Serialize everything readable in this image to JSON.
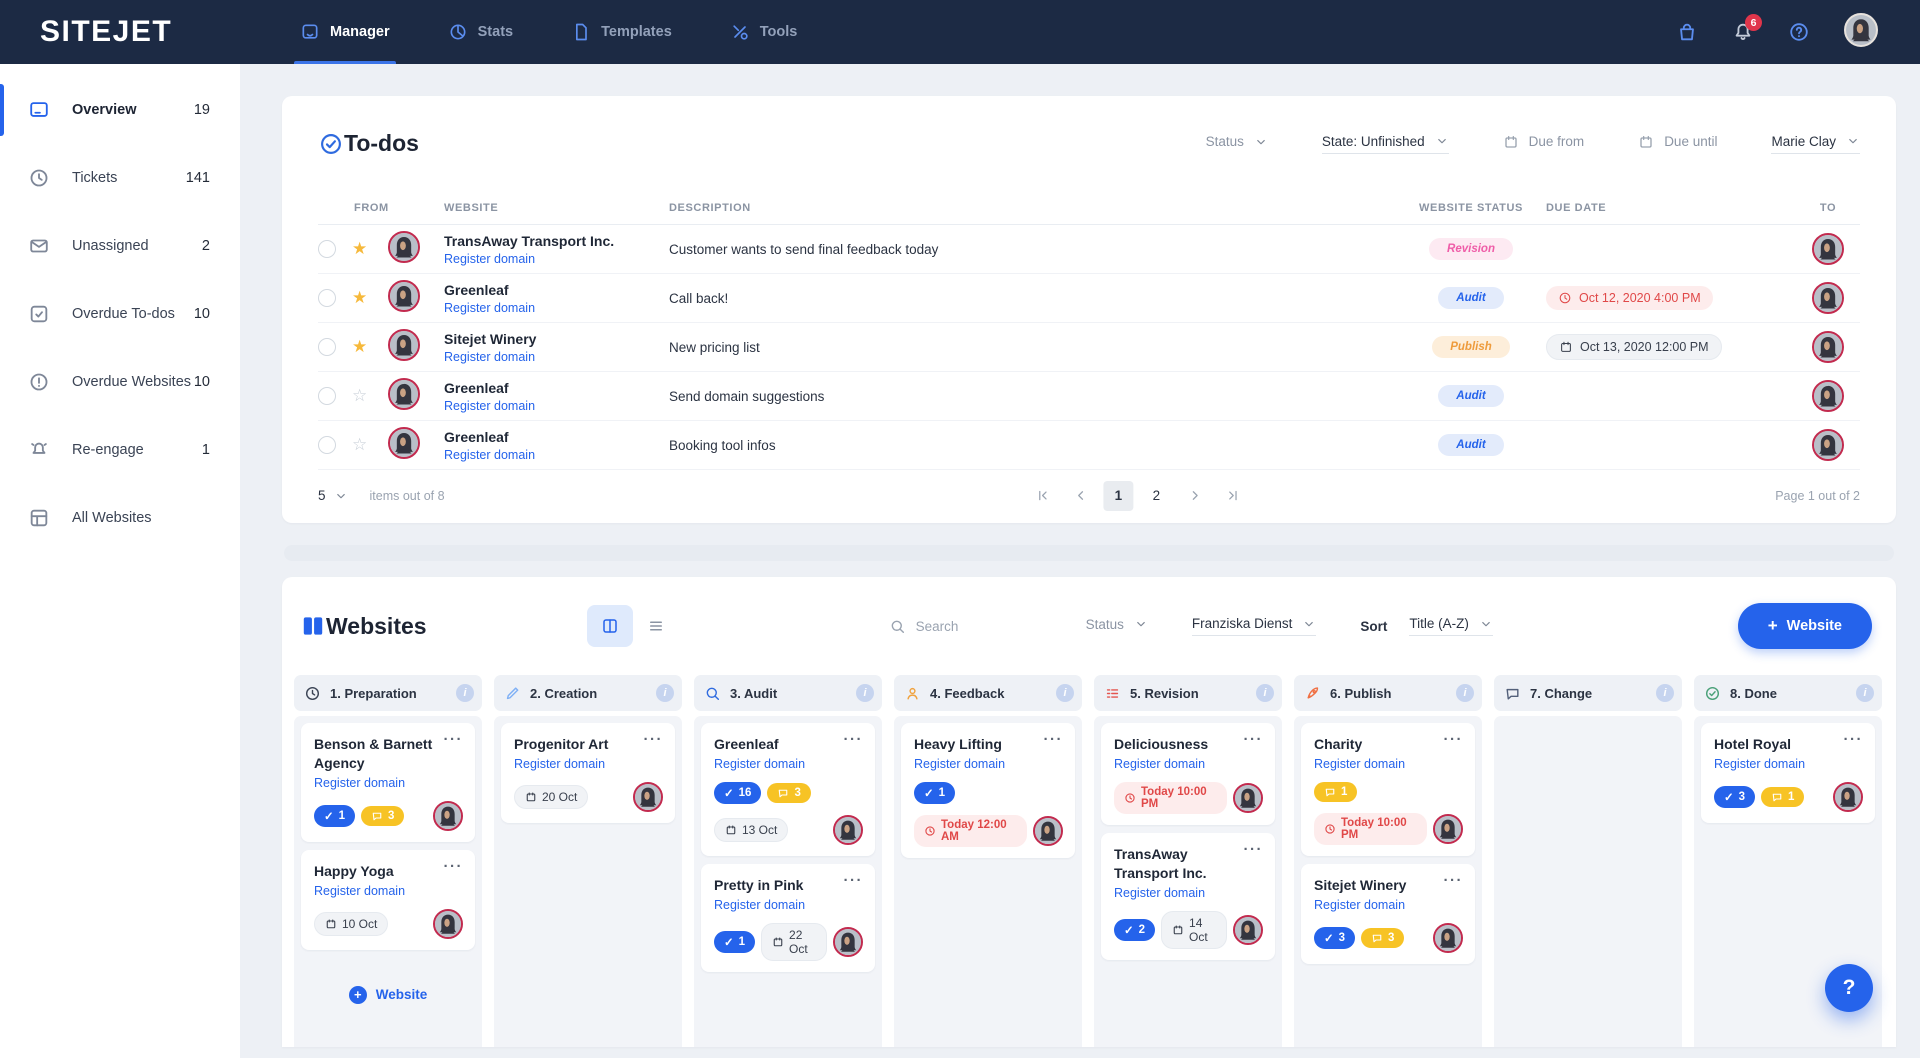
{
  "nav": {
    "logo": "SITEJET",
    "items": [
      {
        "label": "Manager",
        "icon": "monitor",
        "active": true
      },
      {
        "label": "Stats",
        "icon": "pie",
        "active": false
      },
      {
        "label": "Templates",
        "icon": "doc",
        "active": false
      },
      {
        "label": "Tools",
        "icon": "tools",
        "active": false
      }
    ],
    "notification_count": "6"
  },
  "sidebar": {
    "items": [
      {
        "label": "Overview",
        "count": "19",
        "icon": "browser",
        "active": true
      },
      {
        "label": "Tickets",
        "count": "141",
        "icon": "clock",
        "active": false
      },
      {
        "label": "Unassigned",
        "count": "2",
        "icon": "envelope",
        "active": false
      },
      {
        "label": "Overdue To-dos",
        "count": "10",
        "icon": "checksquare",
        "active": false
      },
      {
        "label": "Overdue Websites",
        "count": "10",
        "icon": "alert",
        "active": false
      },
      {
        "label": "Re-engage",
        "count": "1",
        "icon": "bellring",
        "active": false
      },
      {
        "label": "All Websites",
        "count": "",
        "icon": "grid",
        "active": false
      }
    ]
  },
  "todos": {
    "title": "To-dos",
    "filters": {
      "status": "Status",
      "state": "State: Unfinished",
      "due_from": "Due from",
      "due_until": "Due until",
      "assignee": "Marie Clay"
    },
    "columns": [
      "FROM",
      "WEBSITE",
      "DESCRIPTION",
      "WEBSITE STATUS",
      "DUE DATE",
      "TO"
    ],
    "rows": [
      {
        "starred": true,
        "website": "TransAway Transport Inc.",
        "link": "Register domain",
        "description": "Customer wants to send final feedback today",
        "status": "Revision",
        "status_type": "revision",
        "due": "",
        "due_type": ""
      },
      {
        "starred": true,
        "website": "Greenleaf",
        "link": "Register domain",
        "description": "Call back!",
        "status": "Audit",
        "status_type": "audit",
        "due": "Oct 12, 2020 4:00 PM",
        "due_type": "overdue"
      },
      {
        "starred": true,
        "website": "Sitejet Winery",
        "link": "Register domain",
        "description": "New pricing list",
        "status": "Publish",
        "status_type": "publish",
        "due": "Oct 13, 2020 12:00 PM",
        "due_type": "normal"
      },
      {
        "starred": false,
        "website": "Greenleaf",
        "link": "Register domain",
        "description": "Send domain suggestions",
        "status": "Audit",
        "status_type": "audit",
        "due": "",
        "due_type": ""
      },
      {
        "starred": false,
        "website": "Greenleaf",
        "link": "Register domain",
        "description": "Booking tool infos",
        "status": "Audit",
        "status_type": "audit",
        "due": "",
        "due_type": ""
      }
    ],
    "pagination": {
      "per_page": "5",
      "items_label": "items out of 8",
      "pages": [
        "1",
        "2"
      ],
      "current_page": "1",
      "page_label": "Page 1 out of 2"
    }
  },
  "websites": {
    "title": "Websites",
    "search_placeholder": "Search",
    "filters": {
      "status": "Status",
      "assignee": "Franziska Dienst",
      "sort_label": "Sort",
      "sort_value": "Title (A-Z)"
    },
    "add_button_label": "Website",
    "lanes": [
      {
        "title": "1. Preparation",
        "icon": "clock",
        "icon_color": "#3a4354",
        "add_label": "Website",
        "cards": [
          {
            "title": "Benson & Barnett Agency",
            "link": "Register domain",
            "badge_rows": [
              [
                {
                  "type": "check",
                  "value": "1"
                },
                {
                  "type": "comment",
                  "value": "3"
                }
              ]
            ]
          },
          {
            "title": "Happy Yoga",
            "link": "Register domain",
            "badge_rows": [
              [
                {
                  "type": "date",
                  "value": "10 Oct"
                }
              ]
            ]
          }
        ]
      },
      {
        "title": "2. Creation",
        "icon": "pencil",
        "icon_color": "#7fb0f5",
        "add_label": "",
        "cards": [
          {
            "title": "Progenitor Art",
            "link": "Register domain",
            "badge_rows": [
              [
                {
                  "type": "date",
                  "value": "20 Oct"
                }
              ]
            ]
          }
        ]
      },
      {
        "title": "3. Audit",
        "icon": "search",
        "icon_color": "#2f6bdf",
        "add_label": "",
        "cards": [
          {
            "title": "Greenleaf",
            "link": "Register domain",
            "badge_rows": [
              [
                {
                  "type": "check",
                  "value": "16"
                },
                {
                  "type": "comment",
                  "value": "3"
                }
              ],
              [
                {
                  "type": "date",
                  "value": "13 Oct"
                }
              ]
            ]
          },
          {
            "title": "Pretty in Pink",
            "link": "Register domain",
            "badge_rows": [
              [
                {
                  "type": "check",
                  "value": "1"
                },
                {
                  "type": "date",
                  "value": "22 Oct"
                }
              ]
            ]
          }
        ]
      },
      {
        "title": "4. Feedback",
        "icon": "person",
        "icon_color": "#f0a23e",
        "add_label": "",
        "cards": [
          {
            "title": "Heavy Lifting",
            "link": "Register domain",
            "badge_rows": [
              [
                {
                  "type": "check",
                  "value": "1"
                }
              ],
              [
                {
                  "type": "due",
                  "value": "Today 12:00 AM"
                }
              ]
            ]
          }
        ]
      },
      {
        "title": "5. Revision",
        "icon": "listdash",
        "icon_color": "#e4554f",
        "add_label": "",
        "cards": [
          {
            "title": "Deliciousness",
            "link": "Register domain",
            "badge_rows": [
              [
                {
                  "type": "due",
                  "value": "Today 10:00 PM"
                }
              ]
            ]
          },
          {
            "title": "TransAway Transport Inc.",
            "link": "Register domain",
            "badge_rows": [
              [
                {
                  "type": "check",
                  "value": "2"
                },
                {
                  "type": "date",
                  "value": "14 Oct"
                }
              ]
            ]
          }
        ]
      },
      {
        "title": "6. Publish",
        "icon": "rocket",
        "icon_color": "#f07043",
        "add_label": "",
        "cards": [
          {
            "title": "Charity",
            "link": "Register domain",
            "badge_rows": [
              [
                {
                  "type": "comment",
                  "value": "1"
                }
              ],
              [
                {
                  "type": "due",
                  "value": "Today 10:00 PM"
                }
              ]
            ]
          },
          {
            "title": "Sitejet Winery",
            "link": "Register domain",
            "badge_rows": [
              [
                {
                  "type": "check",
                  "value": "3"
                },
                {
                  "type": "comment",
                  "value": "3"
                }
              ]
            ]
          }
        ]
      },
      {
        "title": "7. Change",
        "icon": "chat",
        "icon_color": "#53607a",
        "add_label": "",
        "cards": []
      },
      {
        "title": "8. Done",
        "icon": "checkcircle",
        "icon_color": "#49a078",
        "add_label": "",
        "cards": [
          {
            "title": "Hotel Royal",
            "link": "Register domain",
            "badge_rows": [
              [
                {
                  "type": "check",
                  "value": "3"
                },
                {
                  "type": "comment",
                  "value": "1"
                }
              ]
            ]
          }
        ]
      }
    ]
  },
  "help_button": "?",
  "colors": {
    "accent": "#2563eb",
    "topbar": "#1c2a44",
    "badge_revision": "#ef5da8",
    "badge_audit": "#2563eb",
    "badge_publish": "#ee9b3c",
    "overdue_red": "#e04848",
    "comment_yellow": "#f7c325",
    "notification_red": "#e0354b"
  }
}
